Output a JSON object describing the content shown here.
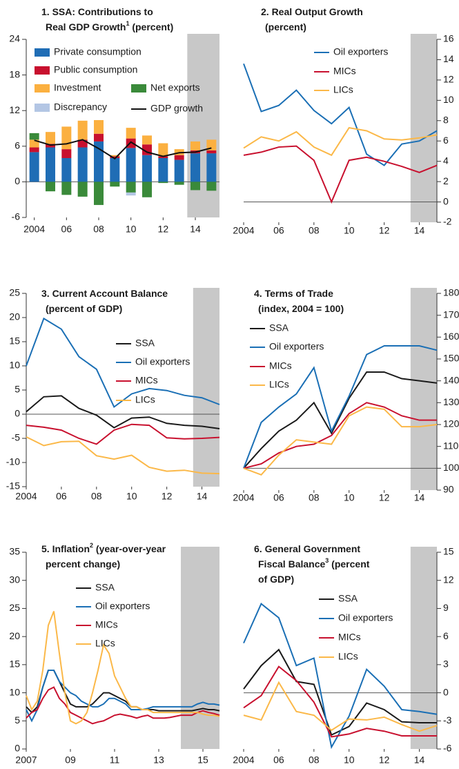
{
  "chart_data": [
    {
      "type": "stacked_bar",
      "title": [
        [
          {
            "text": "1. SSA: Contributions to"
          }
        ],
        [
          {
            "text": "Real GDP Growth"
          },
          {
            "text": "1",
            "sup": true
          },
          {
            "text": " (percent)"
          }
        ]
      ],
      "x": [
        2004,
        2005,
        2006,
        2007,
        2008,
        2009,
        2010,
        2011,
        2012,
        2013,
        2014,
        2015
      ],
      "xlim": [
        2003.5,
        2015.5
      ],
      "xticks": [
        {
          "value": 2004,
          "label": "2004"
        },
        {
          "value": 2006,
          "label": "06"
        },
        {
          "value": 2008,
          "label": "08"
        },
        {
          "value": 2010,
          "label": "10"
        },
        {
          "value": 2012,
          "label": "12"
        },
        {
          "value": 2014,
          "label": "14"
        }
      ],
      "ylim": [
        -6,
        24
      ],
      "yticks": [
        -6,
        0,
        6,
        12,
        18,
        24
      ],
      "hline": 0,
      "shade_from": 2013.5,
      "series": [
        {
          "name": "Private consumption",
          "color": "#1f6db5",
          "values": [
            5.0,
            5.8,
            4.0,
            5.8,
            6.8,
            4.0,
            5.7,
            4.5,
            4.0,
            3.7,
            4.8,
            4.8
          ]
        },
        {
          "name": "Public consumption",
          "color": "#c8102e",
          "values": [
            0.8,
            0.6,
            1.5,
            1.3,
            1.3,
            0.3,
            1.6,
            1.8,
            0.3,
            0.8,
            0.5,
            0.5
          ]
        },
        {
          "name": "Investment",
          "color": "#fbb040",
          "values": [
            1.3,
            2.0,
            3.8,
            3.2,
            2.3,
            0.2,
            1.8,
            1.5,
            2.2,
            1.0,
            1.5,
            1.8
          ]
        },
        {
          "name": "Net exports",
          "color": "#3a8a3a",
          "values": [
            1.1,
            -1.6,
            -2.2,
            -2.5,
            -3.9,
            -0.8,
            -1.8,
            -2.6,
            -0.2,
            -0.5,
            -1.4,
            -1.5
          ]
        },
        {
          "name": "Discrepancy",
          "color": "#b3c6e4",
          "values": [
            0,
            0,
            0,
            0,
            0,
            0,
            -0.5,
            0,
            0,
            0,
            0,
            0
          ]
        },
        {
          "name": "GDP growth",
          "color": "#111111",
          "type": "line",
          "values": [
            7.0,
            6.2,
            6.4,
            7.1,
            5.6,
            3.9,
            6.7,
            5.0,
            4.3,
            4.9,
            5.0,
            5.7
          ]
        }
      ]
    },
    {
      "type": "line",
      "title": [
        [
          {
            "text": "2. Real Output Growth"
          }
        ],
        [
          {
            "text": "(percent)"
          }
        ]
      ],
      "x": [
        2004,
        2005,
        2006,
        2007,
        2008,
        2009,
        2010,
        2011,
        2012,
        2013,
        2014,
        2015
      ],
      "xlim": [
        2004,
        2015
      ],
      "xticks": [
        {
          "value": 2004,
          "label": "2004"
        },
        {
          "value": 2006,
          "label": "06"
        },
        {
          "value": 2008,
          "label": "08"
        },
        {
          "value": 2010,
          "label": "10"
        },
        {
          "value": 2012,
          "label": "12"
        },
        {
          "value": 2014,
          "label": "14"
        }
      ],
      "ylim": [
        -2,
        16
      ],
      "yticks": [
        -2,
        0,
        2,
        4,
        6,
        8,
        10,
        12,
        14,
        16
      ],
      "hline": 0,
      "shade_from": 2013.5,
      "series": [
        {
          "name": "Oil exporters",
          "color": "#1a6fb5",
          "values": [
            13.6,
            8.9,
            9.5,
            11.0,
            9.0,
            7.7,
            9.3,
            4.7,
            3.6,
            5.7,
            6.0,
            7.0
          ]
        },
        {
          "name": "MICs",
          "color": "#c8102e",
          "values": [
            4.6,
            4.9,
            5.4,
            5.5,
            4.1,
            0.0,
            4.1,
            4.4,
            4.0,
            3.5,
            2.9,
            3.6
          ]
        },
        {
          "name": "LICs",
          "color": "#fbb848",
          "values": [
            5.3,
            6.4,
            6.0,
            6.9,
            5.4,
            4.6,
            7.3,
            7.0,
            6.2,
            6.1,
            6.3,
            6.6
          ]
        }
      ]
    },
    {
      "type": "line",
      "title": [
        [
          {
            "text": "3. Current Account Balance"
          }
        ],
        [
          {
            "text": "(percent of GDP)"
          }
        ]
      ],
      "x": [
        2004,
        2005,
        2006,
        2007,
        2008,
        2009,
        2010,
        2011,
        2012,
        2013,
        2014,
        2015
      ],
      "xlim": [
        2004,
        2015
      ],
      "xticks": [
        {
          "value": 2004,
          "label": "2004"
        },
        {
          "value": 2006,
          "label": "06"
        },
        {
          "value": 2008,
          "label": "08"
        },
        {
          "value": 2010,
          "label": "10"
        },
        {
          "value": 2012,
          "label": "12"
        },
        {
          "value": 2014,
          "label": "14"
        }
      ],
      "ylim": [
        -15,
        25
      ],
      "yticks": [
        -15,
        -10,
        -5,
        0,
        5,
        10,
        15,
        20,
        25
      ],
      "hline": 0,
      "shade_from": 2013.5,
      "series": [
        {
          "name": "SSA",
          "color": "#1a1a1a",
          "values": [
            0.5,
            3.6,
            3.8,
            1.2,
            -0.2,
            -2.8,
            -0.8,
            -0.6,
            -1.9,
            -2.3,
            -2.5,
            -3.0
          ]
        },
        {
          "name": "Oil exporters",
          "color": "#1a6fb5",
          "values": [
            10.0,
            19.8,
            17.6,
            11.9,
            9.3,
            1.5,
            4.2,
            5.3,
            4.9,
            3.9,
            3.4,
            2.0
          ]
        },
        {
          "name": "MICs",
          "color": "#c8102e",
          "values": [
            -2.3,
            -2.7,
            -3.3,
            -5.0,
            -6.2,
            -3.3,
            -2.1,
            -2.3,
            -4.9,
            -5.1,
            -5.0,
            -4.8
          ]
        },
        {
          "name": "LICs",
          "color": "#fbb848",
          "values": [
            -4.7,
            -6.5,
            -5.7,
            -5.6,
            -8.6,
            -9.3,
            -8.5,
            -11.0,
            -11.8,
            -11.6,
            -12.2,
            -12.3
          ]
        }
      ]
    },
    {
      "type": "line",
      "title": [
        [
          {
            "text": "4. Terms of Trade"
          }
        ],
        [
          {
            "text": "(index, 2004 = 100)"
          }
        ]
      ],
      "x": [
        2004,
        2005,
        2006,
        2007,
        2008,
        2009,
        2010,
        2011,
        2012,
        2013,
        2014,
        2015
      ],
      "xlim": [
        2004,
        2015
      ],
      "xticks": [
        {
          "value": 2004,
          "label": "2004"
        },
        {
          "value": 2006,
          "label": "06"
        },
        {
          "value": 2008,
          "label": "08"
        },
        {
          "value": 2010,
          "label": "10"
        },
        {
          "value": 2012,
          "label": "12"
        },
        {
          "value": 2014,
          "label": "14"
        }
      ],
      "ylim": [
        90,
        180
      ],
      "yticks": [
        90,
        100,
        110,
        120,
        130,
        140,
        150,
        160,
        170,
        180
      ],
      "hline": 100,
      "shade_from": 2013.5,
      "series": [
        {
          "name": "SSA",
          "color": "#1a1a1a",
          "values": [
            100,
            109,
            117,
            122,
            130,
            116,
            132,
            144,
            144,
            141,
            140,
            139
          ]
        },
        {
          "name": "Oil exporters",
          "color": "#1a6fb5",
          "values": [
            100,
            121,
            128,
            134,
            146,
            117,
            133,
            152,
            156,
            156,
            156,
            154
          ]
        },
        {
          "name": "MICs",
          "color": "#c8102e",
          "values": [
            100,
            102,
            107,
            110,
            111,
            115,
            125,
            130,
            128,
            124,
            122,
            122
          ]
        },
        {
          "name": "LICs",
          "color": "#fbb848",
          "values": [
            100,
            97,
            106,
            113,
            112,
            111,
            124,
            128,
            127,
            119,
            119,
            120
          ]
        }
      ]
    },
    {
      "type": "line",
      "title": [
        [
          {
            "text": "5. Inflation"
          },
          {
            "text": "2",
            "sup": true
          },
          {
            "text": " (year-over-year"
          }
        ],
        [
          {
            "text": "percent change)"
          }
        ]
      ],
      "x": [
        2007,
        2007.25,
        2007.5,
        2007.75,
        2008,
        2008.25,
        2008.5,
        2008.75,
        2009,
        2009.25,
        2009.5,
        2009.75,
        2010,
        2010.25,
        2010.5,
        2010.75,
        2011,
        2011.25,
        2011.5,
        2011.75,
        2012,
        2012.25,
        2012.5,
        2012.75,
        2013,
        2013.25,
        2013.5,
        2013.75,
        2014,
        2014.25,
        2014.5,
        2014.75,
        2015,
        2015.25,
        2015.5,
        2015.75
      ],
      "xlim": [
        2007,
        2015.75
      ],
      "xticks": [
        {
          "value": 2007,
          "label": "2007"
        },
        {
          "value": 2009,
          "label": "09"
        },
        {
          "value": 2011,
          "label": "11"
        },
        {
          "value": 2013,
          "label": "13"
        },
        {
          "value": 2015,
          "label": "15"
        }
      ],
      "ylim": [
        0,
        35
      ],
      "yticks": [
        0,
        5,
        10,
        15,
        20,
        25,
        30,
        35
      ],
      "shade_from": 2014,
      "series": [
        {
          "name": "SSA",
          "color": "#1a1a1a",
          "values": [
            7.5,
            6.5,
            7.5,
            11,
            14,
            14,
            12,
            10,
            8,
            7.5,
            7.5,
            7.5,
            8,
            9,
            10,
            10,
            9.5,
            9,
            8.5,
            7.5,
            7.5,
            7,
            7,
            7,
            6.8,
            6.8,
            6.8,
            6.8,
            6.8,
            6.8,
            6.8,
            7,
            7.2,
            7,
            7,
            6.8
          ]
        },
        {
          "name": "Oil exporters",
          "color": "#1a6fb5",
          "values": [
            7,
            5,
            7,
            11,
            14,
            14,
            12,
            11,
            10,
            9.5,
            8.5,
            8,
            7.5,
            7.5,
            8,
            9,
            9,
            8.5,
            8,
            7,
            7,
            7,
            7.2,
            7.5,
            7.5,
            7.5,
            7.5,
            7.5,
            7.5,
            7.5,
            7.5,
            8,
            8.3,
            8,
            8,
            7.8
          ]
        },
        {
          "name": "MICs",
          "color": "#c8102e",
          "values": [
            5.5,
            6.5,
            7,
            9,
            10.5,
            11,
            9,
            8,
            6.5,
            6,
            5.5,
            5,
            4.5,
            4.8,
            5,
            5.5,
            6,
            6.2,
            6,
            5.8,
            5.5,
            5.8,
            6,
            5.5,
            5.5,
            5.5,
            5.6,
            5.8,
            6,
            6,
            6,
            6.5,
            6.8,
            6.5,
            6.3,
            6
          ]
        },
        {
          "name": "LICs",
          "color": "#fbb848",
          "values": [
            9.5,
            7,
            8.5,
            14,
            22,
            24.5,
            17,
            10,
            5,
            4.5,
            5,
            6.5,
            10,
            14,
            18.5,
            17,
            13,
            11,
            9,
            7.5,
            7.5,
            7,
            7,
            6.5,
            6.5,
            6.5,
            6.5,
            6.5,
            6.5,
            6.5,
            6.5,
            6.5,
            6.2,
            6,
            6,
            5.8
          ]
        }
      ]
    },
    {
      "type": "line",
      "title": [
        [
          {
            "text": "6. General Government"
          }
        ],
        [
          {
            "text": "Fiscal Balance"
          },
          {
            "text": "3",
            "sup": true
          },
          {
            "text": " (percent"
          }
        ],
        [
          {
            "text": "of GDP)"
          }
        ]
      ],
      "x": [
        2004,
        2005,
        2006,
        2007,
        2008,
        2009,
        2010,
        2011,
        2012,
        2013,
        2014,
        2015
      ],
      "xlim": [
        2004,
        2015
      ],
      "xticks": [
        {
          "value": 2004,
          "label": "2004"
        },
        {
          "value": 2006,
          "label": "06"
        },
        {
          "value": 2008,
          "label": "08"
        },
        {
          "value": 2010,
          "label": "10"
        },
        {
          "value": 2012,
          "label": "12"
        },
        {
          "value": 2014,
          "label": "14"
        }
      ],
      "ylim": [
        -6,
        15
      ],
      "yticks": [
        -6,
        -3,
        0,
        3,
        6,
        9,
        12,
        15
      ],
      "hline": 0,
      "shade_from": 2013.5,
      "series": [
        {
          "name": "SSA",
          "color": "#1a1a1a",
          "values": [
            0.4,
            2.9,
            4.6,
            1.2,
            0.9,
            -4.5,
            -3.6,
            -1.1,
            -1.8,
            -3.1,
            -3.2,
            -3.2
          ]
        },
        {
          "name": "Oil exporters",
          "color": "#1a6fb5",
          "values": [
            5.3,
            9.5,
            8.0,
            2.9,
            3.7,
            -5.8,
            -2.5,
            2.5,
            0.7,
            -1.8,
            -2.0,
            -2.3
          ]
        },
        {
          "name": "MICs",
          "color": "#c8102e",
          "values": [
            -1.6,
            -0.3,
            2.8,
            1.3,
            -1.0,
            -4.7,
            -4.4,
            -3.8,
            -4.1,
            -4.6,
            -4.6,
            -4.6
          ]
        },
        {
          "name": "LICs",
          "color": "#fbb848",
          "values": [
            -2.4,
            -2.9,
            1.1,
            -2.0,
            -2.4,
            -4.0,
            -2.8,
            -2.9,
            -2.6,
            -3.4,
            -4.1,
            -3.5
          ]
        }
      ]
    }
  ]
}
